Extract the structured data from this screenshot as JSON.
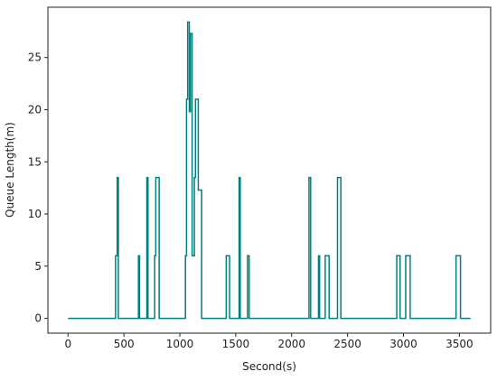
{
  "chart_data": {
    "type": "line",
    "step": "post",
    "x_label": "Second(s)",
    "y_label": "Queue Length(m)",
    "x": [
      0,
      425,
      440,
      450,
      630,
      640,
      705,
      715,
      775,
      785,
      815,
      1050,
      1060,
      1070,
      1085,
      1095,
      1110,
      1130,
      1140,
      1165,
      1195,
      1415,
      1445,
      1530,
      1540,
      1605,
      1620,
      2155,
      2170,
      2240,
      2250,
      2300,
      2335,
      2410,
      2440,
      2940,
      2970,
      3020,
      3060,
      3470,
      3510,
      3600
    ],
    "series": [
      {
        "color": "#008080",
        "values": [
          0,
          6,
          13.5,
          0,
          6,
          0,
          13.5,
          0,
          6,
          13.5,
          0,
          6,
          21,
          28.4,
          19.8,
          27.3,
          6,
          13.5,
          21,
          12.3,
          0,
          6,
          0,
          13.5,
          0,
          6,
          0,
          13.5,
          0,
          6,
          0,
          6,
          0,
          13.5,
          0,
          6,
          0,
          6,
          0,
          6,
          0,
          0
        ]
      }
    ],
    "xlim": [
      -180,
      3780
    ],
    "ylim": [
      -1.42,
      29.82
    ],
    "xticks": [
      0,
      500,
      1000,
      1500,
      2000,
      2500,
      3000,
      3500
    ],
    "yticks": [
      0,
      5,
      10,
      15,
      20,
      25
    ]
  }
}
